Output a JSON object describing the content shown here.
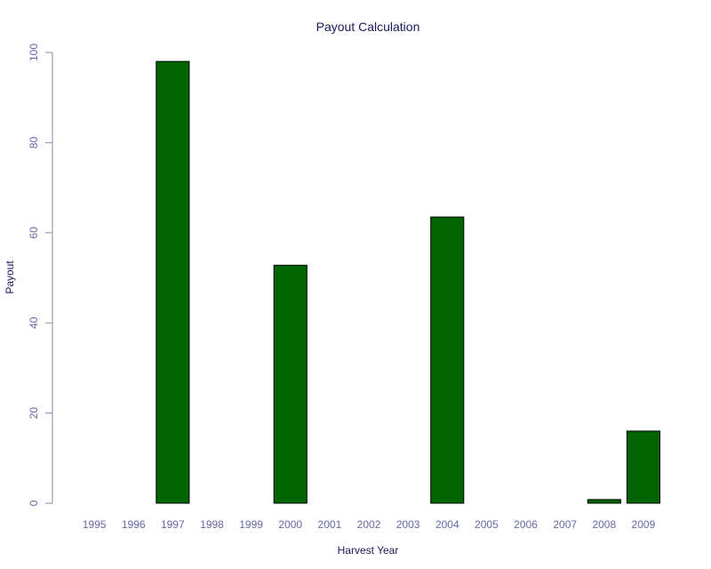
{
  "chart_data": {
    "type": "bar",
    "title": "Payout Calculation",
    "xlabel": "Harvest Year",
    "ylabel": "Payout",
    "categories": [
      "1995",
      "1996",
      "1997",
      "1998",
      "1999",
      "2000",
      "2001",
      "2002",
      "2003",
      "2004",
      "2005",
      "2006",
      "2007",
      "2008",
      "2009"
    ],
    "values": [
      0,
      0,
      98,
      0,
      0,
      52.8,
      0,
      0,
      0,
      63.5,
      0,
      0,
      0,
      0.8,
      16
    ],
    "ylim": [
      0,
      100
    ],
    "yticks": [
      "0",
      "20",
      "40",
      "60",
      "80",
      "100"
    ],
    "grid": false,
    "legend": "none",
    "colors": {
      "bar_fill": "#006400",
      "bar_stroke": "#000000",
      "title": "#1a1a5e",
      "tick_label": "#6666aa",
      "axis": "#8888aa"
    }
  }
}
